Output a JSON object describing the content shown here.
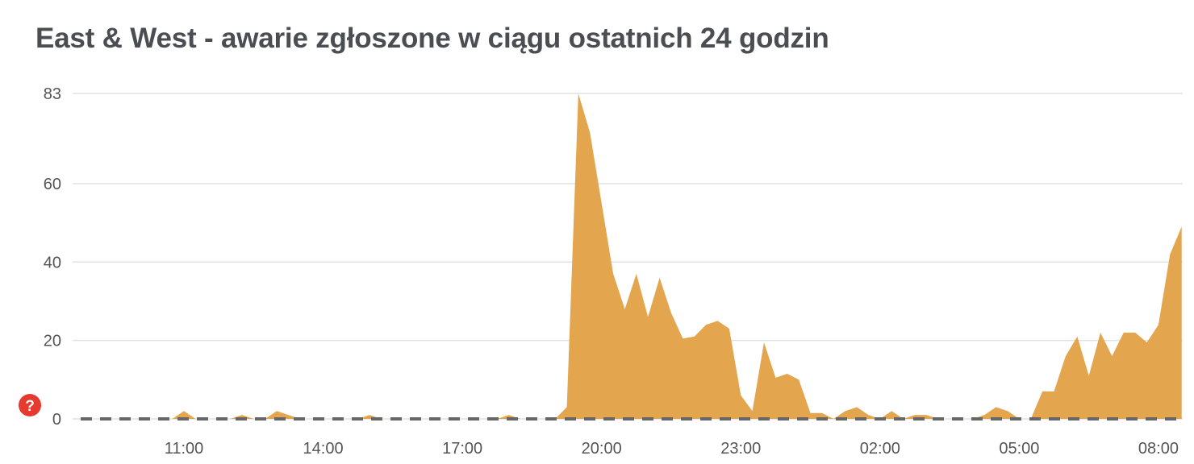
{
  "chart_data": {
    "type": "area",
    "title": "East & West - awarie zgłoszone w ciągu ostatnich 24 godzin",
    "xlabel": "",
    "ylabel": "",
    "ylim": [
      0,
      83
    ],
    "y_ticks": [
      "0",
      "20",
      "40",
      "60",
      "83"
    ],
    "y_tick_values": [
      0,
      20,
      40,
      60,
      83
    ],
    "x_ticks": [
      "11:00",
      "14:00",
      "17:00",
      "20:00",
      "23:00",
      "02:00",
      "05:00",
      "08:00"
    ],
    "grid": true,
    "baseline": 0,
    "x": [
      "08:45",
      "09:00",
      "09:15",
      "09:30",
      "09:45",
      "10:00",
      "10:15",
      "10:30",
      "10:45",
      "11:00",
      "11:15",
      "11:30",
      "11:45",
      "12:00",
      "12:15",
      "12:30",
      "12:45",
      "13:00",
      "13:15",
      "13:30",
      "13:45",
      "14:00",
      "14:15",
      "14:30",
      "14:45",
      "15:00",
      "15:15",
      "15:30",
      "15:45",
      "16:00",
      "16:15",
      "16:30",
      "16:45",
      "17:00",
      "17:15",
      "17:30",
      "17:45",
      "18:00",
      "18:15",
      "18:30",
      "18:45",
      "19:00",
      "19:15",
      "19:30",
      "19:45",
      "20:00",
      "20:15",
      "20:30",
      "20:45",
      "21:00",
      "21:15",
      "21:30",
      "21:45",
      "22:00",
      "22:15",
      "22:30",
      "22:45",
      "23:00",
      "23:15",
      "23:30",
      "23:45",
      "00:00",
      "00:15",
      "00:30",
      "00:45",
      "01:00",
      "01:15",
      "01:30",
      "01:45",
      "02:00",
      "02:15",
      "02:30",
      "02:45",
      "03:00",
      "03:15",
      "03:30",
      "03:45",
      "04:00",
      "04:15",
      "04:30",
      "04:45",
      "05:00",
      "05:15",
      "05:30",
      "05:45",
      "06:00",
      "06:15",
      "06:30",
      "06:45",
      "07:00",
      "07:15",
      "07:30",
      "07:45",
      "08:00",
      "08:15",
      "08:30"
    ],
    "values": [
      0,
      0,
      0,
      0,
      0,
      0,
      0,
      0,
      0,
      2,
      0,
      0,
      0,
      0,
      1,
      0,
      0,
      2,
      1,
      0,
      0,
      0,
      0,
      0,
      0,
      1,
      0,
      0,
      0,
      0,
      0,
      0,
      0,
      0,
      0,
      0,
      0,
      1,
      0,
      0,
      0,
      0,
      3,
      83,
      73,
      55,
      37,
      28,
      37,
      26,
      36,
      27,
      20.5,
      21,
      24,
      25,
      23,
      6,
      2,
      19.5,
      10.5,
      11.5,
      10,
      1.5,
      1.5,
      0,
      2,
      3,
      1,
      0,
      2,
      0,
      1,
      1,
      0,
      0,
      0,
      0,
      1,
      3,
      2,
      0,
      0,
      7,
      7,
      16,
      21,
      11,
      22,
      16,
      22,
      22,
      19.5,
      24,
      42,
      49
    ],
    "colors": {
      "area": "#e3a54d",
      "baseline": "#666666",
      "grid": "#e2e2e2"
    }
  },
  "help_icon": {
    "label": "?",
    "color": "#e8392e"
  }
}
